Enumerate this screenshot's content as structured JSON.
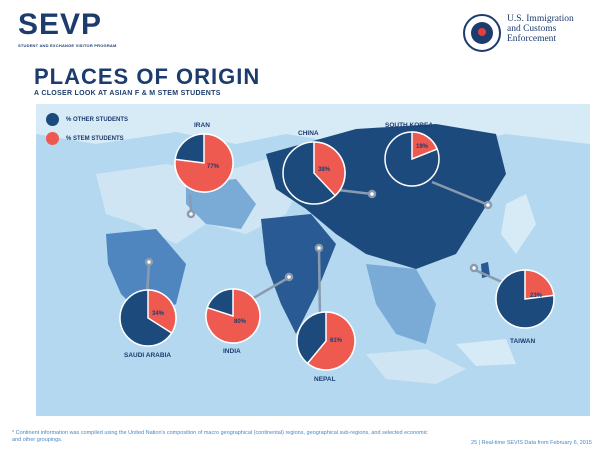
{
  "header": {
    "logo": "SEVP",
    "logo_sub": "STUDENT AND EXCHANGE VISITOR PROGRAM",
    "agency_lines": [
      "U.S. Immigration",
      "and Customs",
      "Enforcement"
    ]
  },
  "title": "PLACES OF ORIGIN",
  "subtitle": "A CLOSER LOOK AT ASIAN F & M STEM STUDENTS",
  "legend": [
    {
      "label": "% OTHER STUDENTS",
      "color": "#1d4a7c"
    },
    {
      "label": "% STEM STUDENTS",
      "color": "#ee5a4f"
    }
  ],
  "colors": {
    "other": "#1d4a7c",
    "stem": "#ee5a4f",
    "water": "#b3d8ef",
    "land_light": "#d7ebf7"
  },
  "countries": [
    {
      "name": "IRAN",
      "stem_pct": 77,
      "stem_label": "77%"
    },
    {
      "name": "CHINA",
      "stem_pct": 38,
      "stem_label": "38%"
    },
    {
      "name": "SOUTH KOREA",
      "stem_pct": 19,
      "stem_label": "19%"
    },
    {
      "name": "SAUDI ARABIA",
      "stem_pct": 34,
      "stem_label": "34%"
    },
    {
      "name": "INDIA",
      "stem_pct": 80,
      "stem_label": "80%"
    },
    {
      "name": "NEPAL",
      "stem_pct": 61,
      "stem_label": "61%"
    },
    {
      "name": "TAIWAN",
      "stem_pct": 23,
      "stem_label": "23%"
    }
  ],
  "footnote": "* Continent information was compiled using the United Nation's composition of macro geographical (continental) regions, geographical sub-regions, and selected economic and other groupings.",
  "source": "25 | Real-time SEVIS Data from February 6, 2015"
}
